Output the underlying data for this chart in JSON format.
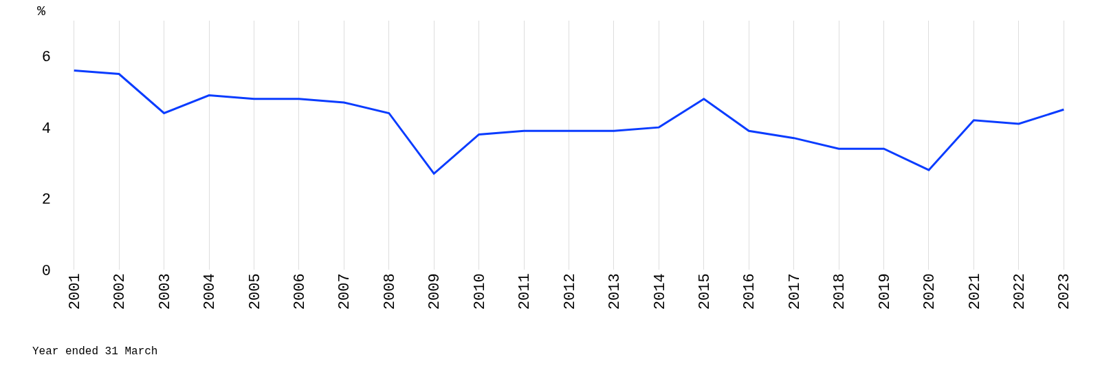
{
  "chart_data": {
    "type": "line",
    "ylabel": "%",
    "xlabel": "Year ended 31 March",
    "categories": [
      "2001",
      "2002",
      "2003",
      "2004",
      "2005",
      "2006",
      "2007",
      "2008",
      "2009",
      "2010",
      "2011",
      "2012",
      "2013",
      "2014",
      "2015",
      "2016",
      "2017",
      "2018",
      "2019",
      "2020",
      "2021",
      "2022",
      "2023"
    ],
    "series": [
      {
        "color": "#0a3cff",
        "values": [
          5.6,
          5.5,
          4.4,
          4.9,
          4.8,
          4.8,
          4.7,
          4.4,
          2.7,
          3.8,
          3.9,
          3.9,
          3.9,
          4.0,
          4.8,
          3.9,
          3.7,
          3.4,
          3.4,
          2.8,
          4.2,
          4.1,
          4.5
        ]
      }
    ],
    "ylim": [
      0,
      7
    ],
    "yticks": [
      0,
      2,
      4,
      6
    ],
    "grid": "x",
    "marker": "none",
    "line_style": "solid"
  }
}
